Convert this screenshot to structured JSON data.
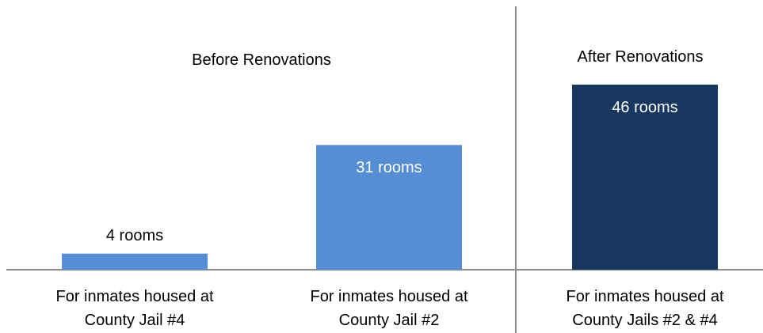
{
  "chart_data": {
    "type": "bar",
    "categories": [
      "For inmates housed at County Jail #4",
      "For inmates housed at County Jail #2",
      "For inmates housed at County Jails #2 & #4"
    ],
    "values": [
      4,
      31,
      46
    ],
    "value_labels": [
      "4 rooms",
      "31 rooms",
      "46 rooms"
    ],
    "colors": [
      "#558ed5",
      "#558ed5",
      "#17375e"
    ],
    "annotations": [
      "Before Renovations",
      "After Renovations"
    ]
  }
}
